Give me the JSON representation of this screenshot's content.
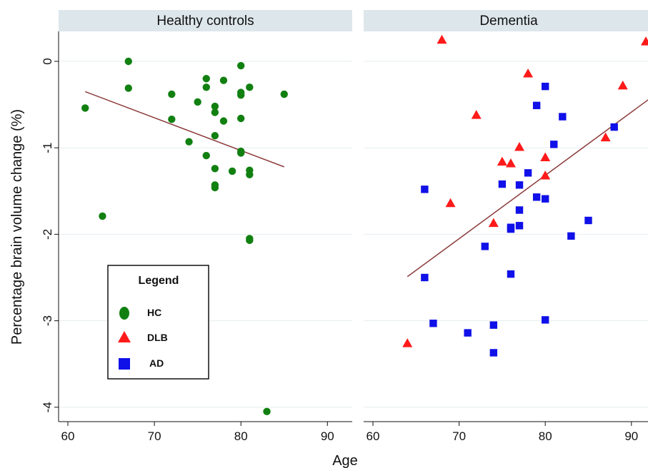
{
  "colors": {
    "hc": "#118011",
    "dlb": "#ff1a1a",
    "ad": "#1010e8",
    "fit_line": "#8b3a3a",
    "strip_bg": "#dde6eb",
    "grid": "#e6edf0"
  },
  "chart_data": {
    "type": "scatter",
    "xlabel": "Age",
    "ylabel": "Percentage brain volume change (%)",
    "xlim": [
      60,
      92
    ],
    "ylim": [
      -4.15,
      0.3
    ],
    "xticks": [
      60,
      70,
      80,
      90
    ],
    "yticks": [
      0,
      -1,
      -2,
      -3,
      -4
    ],
    "grid": "horizontal",
    "legend": {
      "title": "Legend",
      "placement": "bottom-left of first panel",
      "items": [
        {
          "label": "HC",
          "color": "#118011",
          "shape": "circle"
        },
        {
          "label": "DLB",
          "color": "#ff1a1a",
          "shape": "triangle"
        },
        {
          "label": "AD",
          "color": "#1010e8",
          "shape": "square"
        }
      ]
    },
    "panels": [
      {
        "title": "Healthy controls",
        "fit_line": [
          [
            62,
            -0.35
          ],
          [
            85,
            -1.22
          ]
        ],
        "series": [
          {
            "name": "HC",
            "shape": "circle",
            "color": "#118011",
            "x": [
              62,
              64,
              67,
              67,
              72,
              72,
              74,
              75,
              76,
              76,
              76,
              77,
              77,
              77,
              77,
              77,
              77,
              78,
              78,
              79,
              80,
              80,
              80,
              80,
              80,
              80,
              81,
              81,
              81,
              81,
              81,
              83,
              85
            ],
            "y": [
              -0.54,
              -1.79,
              0.0,
              -0.31,
              -0.38,
              -0.67,
              -0.93,
              -0.47,
              -0.2,
              -0.3,
              -1.09,
              -0.52,
              -0.59,
              -0.86,
              -1.24,
              -1.43,
              -1.46,
              -0.22,
              -0.69,
              -1.27,
              -0.05,
              -0.36,
              -0.39,
              -0.66,
              -1.04,
              -1.06,
              -0.3,
              -1.26,
              -1.31,
              -2.05,
              -2.07,
              -4.05,
              -0.38
            ]
          }
        ]
      },
      {
        "title": "Dementia",
        "fit_line": [
          [
            64,
            -2.49
          ],
          [
            92,
            -0.44
          ]
        ],
        "series": [
          {
            "name": "DLB",
            "shape": "triangle",
            "color": "#ff1a1a",
            "x": [
              64,
              68,
              69,
              72,
              74,
              75,
              76,
              77,
              78,
              80,
              80,
              87,
              89,
              92
            ],
            "y": [
              -3.26,
              0.25,
              -1.64,
              -0.62,
              -1.87,
              -1.16,
              -1.18,
              -0.99,
              -0.14,
              -1.11,
              -1.32,
              -0.88,
              -0.28,
              0.23
            ]
          },
          {
            "name": "AD",
            "shape": "square",
            "color": "#1010e8",
            "x": [
              66,
              66,
              67,
              71,
              73,
              74,
              74,
              75,
              76,
              76,
              76,
              77,
              77,
              77,
              78,
              79,
              79,
              80,
              80,
              80,
              81,
              82,
              83,
              85,
              88
            ],
            "y": [
              -1.48,
              -2.5,
              -3.03,
              -3.14,
              -2.14,
              -3.05,
              -3.37,
              -1.42,
              -1.92,
              -1.94,
              -2.46,
              -1.43,
              -1.72,
              -1.9,
              -1.29,
              -0.51,
              -1.57,
              -0.29,
              -1.59,
              -2.99,
              -0.96,
              -0.64,
              -2.02,
              -1.84,
              -0.76
            ]
          }
        ]
      }
    ]
  }
}
